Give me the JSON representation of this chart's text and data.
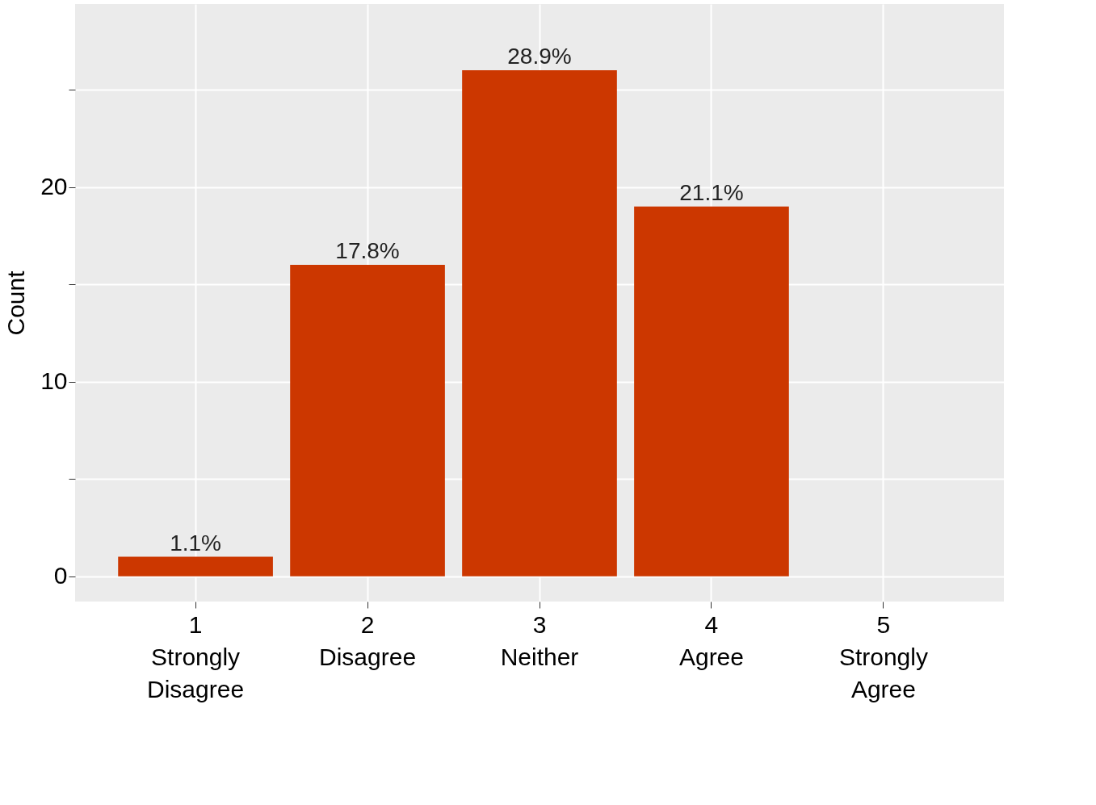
{
  "chart_data": {
    "type": "bar",
    "ylabel": "Count",
    "categories": [
      "1\nStrongly\nDisagree",
      "2\nDisagree",
      "3\nNeither",
      "4\nAgree",
      "5\nStrongly\nAgree"
    ],
    "values": [
      1,
      16,
      26,
      19,
      0
    ],
    "annotations": [
      {
        "text": "1.1%",
        "x": "1\nStrongly\nDisagree",
        "y": 1
      },
      {
        "text": "17.8%",
        "x": "2\nDisagree",
        "y": 16
      },
      {
        "text": "28.9%",
        "x": "3\nNeither",
        "y": 26
      },
      {
        "text": "21.1%",
        "x": "4\nAgree",
        "y": 19
      }
    ],
    "color": "#cc3700",
    "ylim": [
      -1.3,
      29.4
    ],
    "yticks": [
      0,
      {
        "value": 5,
        "label": null
      },
      10,
      {
        "value": 15,
        "label": null
      },
      20,
      {
        "value": 25,
        "label": null
      }
    ],
    "grid": true
  }
}
